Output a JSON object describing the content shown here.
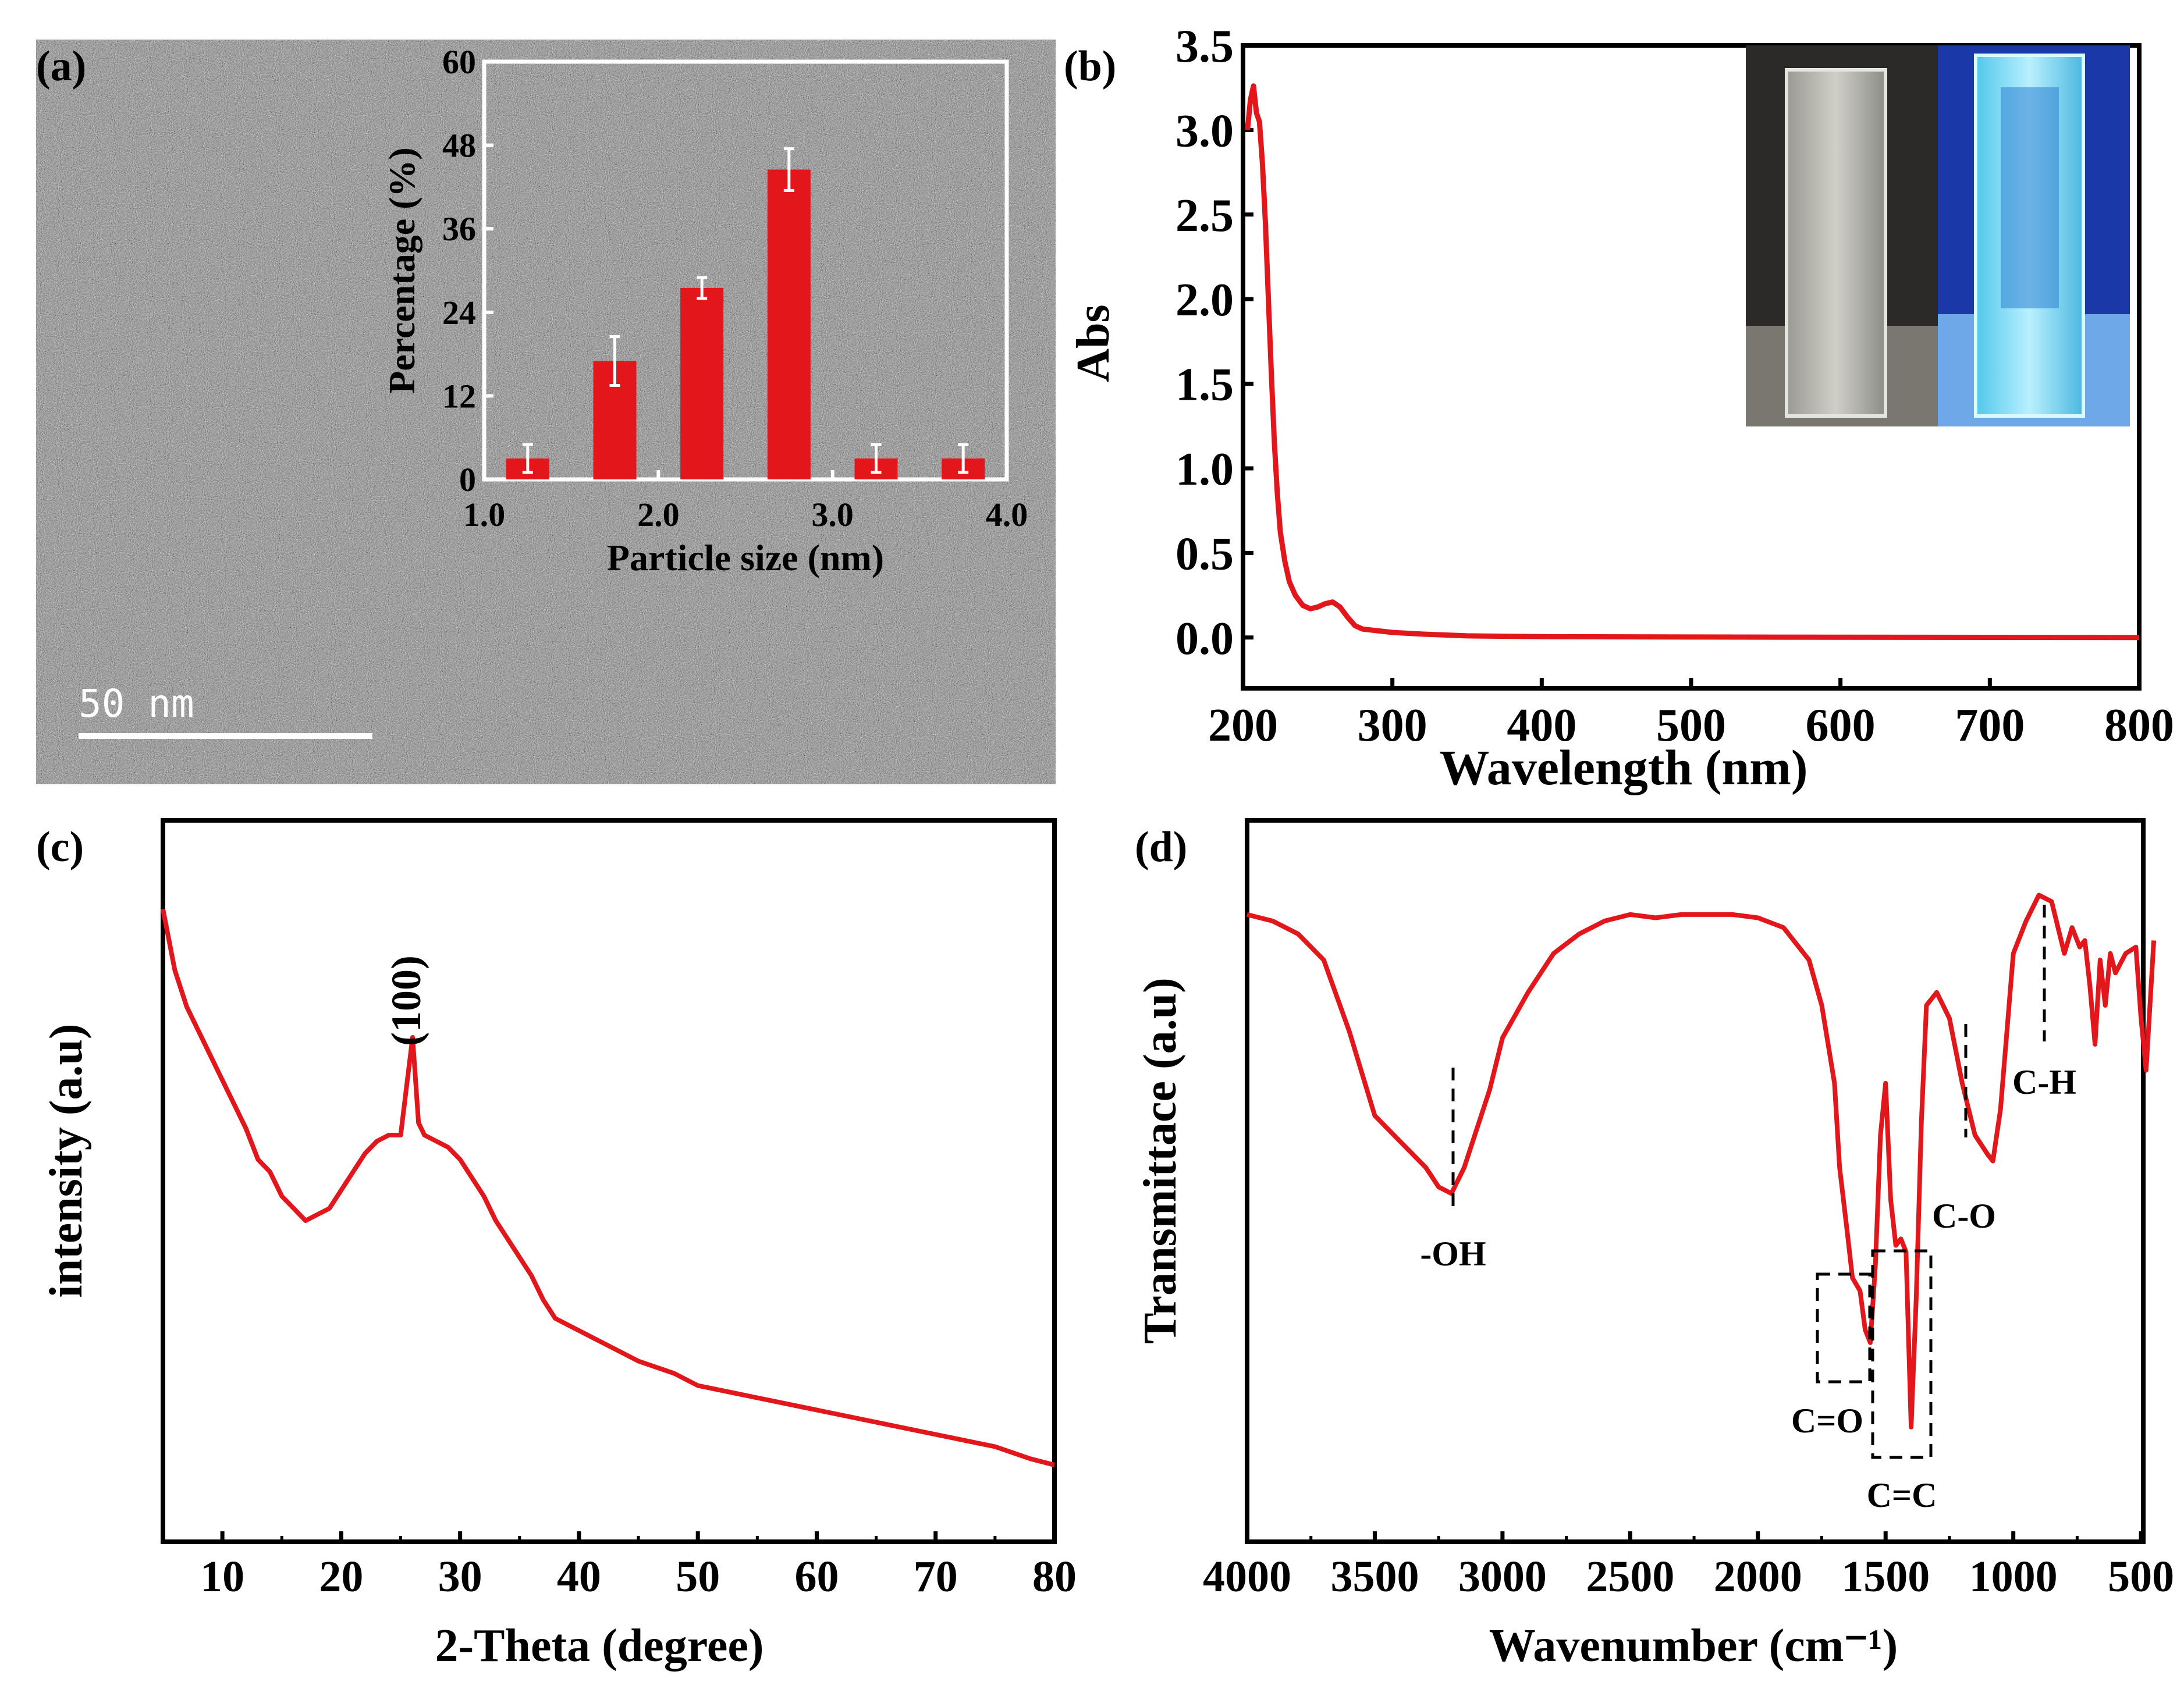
{
  "colors": {
    "series": "#e3161b",
    "tem_bg": "#8a8a8a",
    "ink": "#000000"
  },
  "chart_data": [
    {
      "panel": "(a)",
      "type": "bar",
      "description_image": "TEM micrograph background with inset histogram",
      "scale_bar_label": "50 nm",
      "categories": [
        1.25,
        1.75,
        2.25,
        2.75,
        3.25,
        3.75
      ],
      "values": [
        3,
        17,
        27.5,
        44.5,
        3,
        3
      ],
      "errors": [
        2,
        3.5,
        1.5,
        3,
        2,
        2
      ],
      "xlabel": "Particle size (nm)",
      "ylabel": "Percentage (%)",
      "xlim": [
        1.0,
        4.0
      ],
      "ylim": [
        0,
        60
      ],
      "xticks": [
        "1.0",
        "2.0",
        "3.0",
        "4.0"
      ],
      "yticks": [
        "0",
        "12",
        "24",
        "36",
        "48",
        "60"
      ]
    },
    {
      "panel": "(b)",
      "type": "line",
      "xlabel": "Wavelength (nm)",
      "ylabel": "Abs",
      "xlim": [
        200,
        800
      ],
      "ylim": [
        -0.3,
        3.5
      ],
      "xticks": [
        "200",
        "300",
        "400",
        "500",
        "600",
        "700",
        "800"
      ],
      "yticks": [
        "0.0",
        "0.5",
        "1.0",
        "1.5",
        "2.0",
        "2.5",
        "3.0",
        "3.5"
      ],
      "x": [
        203,
        205,
        207,
        209,
        211,
        213,
        215,
        217,
        219,
        221,
        223,
        225,
        228,
        231,
        235,
        240,
        245,
        250,
        255,
        260,
        265,
        270,
        275,
        280,
        290,
        300,
        320,
        350,
        400,
        500,
        600,
        700,
        800
      ],
      "y": [
        3.0,
        3.18,
        3.26,
        3.1,
        3.05,
        2.8,
        2.45,
        2.0,
        1.55,
        1.15,
        0.85,
        0.62,
        0.45,
        0.33,
        0.25,
        0.19,
        0.17,
        0.18,
        0.2,
        0.21,
        0.18,
        0.12,
        0.07,
        0.05,
        0.04,
        0.03,
        0.02,
        0.01,
        0.005,
        0.003,
        0.002,
        0.001,
        0.0
      ]
    },
    {
      "panel": "(c)",
      "type": "line",
      "xlabel": "2-Theta (degree)",
      "ylabel": "intensity (a.u)",
      "annotation": "(100)",
      "xlim": [
        5,
        80
      ],
      "ylim": [
        0,
        100
      ],
      "xticks": [
        "10",
        "20",
        "30",
        "40",
        "50",
        "60",
        "70",
        "80"
      ],
      "x": [
        5,
        6,
        7,
        8,
        9,
        10,
        11,
        12,
        13,
        14,
        15,
        16,
        17,
        18,
        19,
        20,
        21,
        22,
        23,
        24,
        25,
        25.5,
        26,
        26.5,
        27,
        28,
        29,
        30,
        31,
        32,
        33,
        34,
        35,
        36,
        37,
        38,
        40,
        42,
        45,
        48,
        50,
        55,
        60,
        65,
        70,
        75,
        78,
        80
      ],
      "y": [
        95,
        85,
        79,
        75,
        71,
        67,
        63,
        59,
        54,
        52,
        48,
        46,
        44,
        45,
        46,
        49,
        52,
        55,
        57,
        58,
        58,
        66,
        74,
        60,
        58,
        57,
        56,
        54,
        51,
        48,
        44,
        41,
        38,
        35,
        31,
        28,
        26,
        24,
        21,
        19,
        17,
        15,
        13,
        11,
        9,
        7,
        5,
        4
      ]
    },
    {
      "panel": "(d)",
      "type": "line",
      "xlabel": "Wavenumber (cm⁻¹)",
      "ylabel": "Transmittace (a.u)",
      "xlim": [
        4000,
        400
      ],
      "ylim": [
        0,
        100
      ],
      "xticks": [
        "4000",
        "3500",
        "3000",
        "2500",
        "2000",
        "1500",
        "1000",
        "500"
      ],
      "annotations": [
        "-OH",
        "C=O",
        "C=C",
        "C-O",
        "C-H"
      ],
      "x": [
        4000,
        3900,
        3800,
        3700,
        3600,
        3500,
        3400,
        3300,
        3250,
        3200,
        3150,
        3100,
        3050,
        3000,
        2900,
        2800,
        2700,
        2600,
        2500,
        2400,
        2300,
        2200,
        2100,
        2000,
        1900,
        1800,
        1750,
        1700,
        1680,
        1650,
        1630,
        1600,
        1580,
        1560,
        1540,
        1520,
        1500,
        1480,
        1460,
        1440,
        1420,
        1400,
        1380,
        1360,
        1340,
        1300,
        1250,
        1200,
        1150,
        1100,
        1080,
        1050,
        1000,
        950,
        900,
        850,
        800,
        770,
        740,
        720,
        700,
        680,
        660,
        640,
        620,
        600,
        560,
        520,
        500,
        480,
        450
      ],
      "y": [
        94,
        93,
        91,
        87,
        76,
        63,
        59,
        55,
        52,
        51,
        55,
        61,
        67,
        75,
        82,
        88,
        91,
        93,
        94,
        93.5,
        94,
        94,
        94,
        93.5,
        92,
        87,
        80,
        68,
        55,
        45,
        38,
        36,
        30,
        28,
        40,
        60,
        68,
        50,
        43,
        44,
        42,
        15,
        35,
        62,
        80,
        82,
        78,
        68,
        60,
        57,
        56,
        64,
        88,
        93,
        97,
        96,
        88,
        92,
        89,
        90,
        83,
        74,
        87,
        80,
        88,
        85,
        88,
        89,
        78,
        70,
        90
      ]
    }
  ]
}
